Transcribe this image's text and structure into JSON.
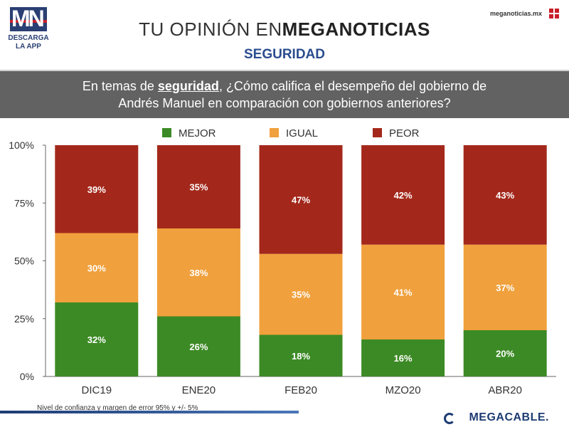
{
  "header": {
    "logo_mark": "MN",
    "logo_caption": "DESCARGA LA APP",
    "title_prefix": "TU OPINIÓN EN",
    "title_brand": "MEGANOTICIAS",
    "subtitle": "SEGURIDAD",
    "site": "meganoticias.mx"
  },
  "question": {
    "part1": "En temas de ",
    "highlight": "seguridad",
    "part2": ", ¿Cómo califica el desempeño del gobierno de",
    "line2": "Andrés Manuel en comparación con gobiernos anteriores?"
  },
  "chart_data": {
    "type": "bar",
    "stacked": true,
    "categories": [
      "DIC19",
      "ENE20",
      "FEB20",
      "MZO20",
      "ABR20"
    ],
    "series": [
      {
        "name": "MEJOR",
        "color": "#3c8a25",
        "values": [
          32,
          26,
          18,
          16,
          20
        ]
      },
      {
        "name": "IGUAL",
        "color": "#f0a03c",
        "values": [
          30,
          38,
          35,
          41,
          37
        ]
      },
      {
        "name": "PEOR",
        "color": "#a3281b",
        "values": [
          39,
          35,
          47,
          42,
          43
        ]
      }
    ],
    "ylim": [
      0,
      100
    ],
    "yticks": [
      "0%",
      "25%",
      "50%",
      "75%",
      "100%"
    ],
    "legend_position": "top"
  },
  "footer": {
    "note": "Nivel de confianza y margen de error 95% y +/- 5%",
    "sponsor": "MEGACABLE."
  }
}
